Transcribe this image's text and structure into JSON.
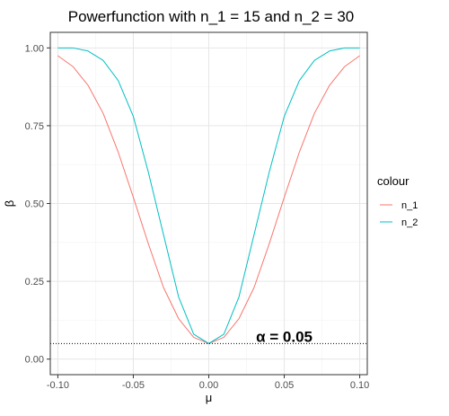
{
  "chart_data": {
    "type": "line",
    "title": "Powerfunction with n_1 =  15 and n_2 =  30",
    "xlabel": "μ",
    "ylabel": "β",
    "xlim": [
      -0.105,
      0.105
    ],
    "ylim": [
      -0.05,
      1.05
    ],
    "x_ticks": [
      -0.1,
      -0.05,
      0.0,
      0.05,
      0.1
    ],
    "x_tick_labels": [
      "-0.10",
      "-0.05",
      "0.00",
      "0.05",
      "0.10"
    ],
    "y_ticks": [
      0.0,
      0.25,
      0.5,
      0.75,
      1.0
    ],
    "y_tick_labels": [
      "0.00",
      "0.25",
      "0.50",
      "0.75",
      "1.00"
    ],
    "grid": true,
    "legend": {
      "title": "colour",
      "placement": "right"
    },
    "x": [
      -0.1,
      -0.09,
      -0.08,
      -0.07,
      -0.06,
      -0.05,
      -0.04,
      -0.03,
      -0.02,
      -0.01,
      0.0,
      0.01,
      0.02,
      0.03,
      0.04,
      0.05,
      0.06,
      0.07,
      0.08,
      0.09,
      0.1
    ],
    "series": [
      {
        "name": "n_1",
        "color": "#F8766D",
        "values": [
          0.975,
          0.94,
          0.88,
          0.79,
          0.665,
          0.52,
          0.37,
          0.23,
          0.13,
          0.07,
          0.05,
          0.07,
          0.13,
          0.23,
          0.37,
          0.52,
          0.665,
          0.79,
          0.88,
          0.94,
          0.975
        ]
      },
      {
        "name": "n_2",
        "color": "#00BFC4",
        "values": [
          1.0,
          1.0,
          0.99,
          0.96,
          0.895,
          0.78,
          0.6,
          0.4,
          0.2,
          0.08,
          0.05,
          0.08,
          0.2,
          0.4,
          0.6,
          0.78,
          0.895,
          0.96,
          0.99,
          1.0,
          1.0
        ]
      }
    ],
    "hline": {
      "y": 0.05,
      "style": "dotted",
      "label": "α = 0.05",
      "label_x": 0.05
    }
  }
}
